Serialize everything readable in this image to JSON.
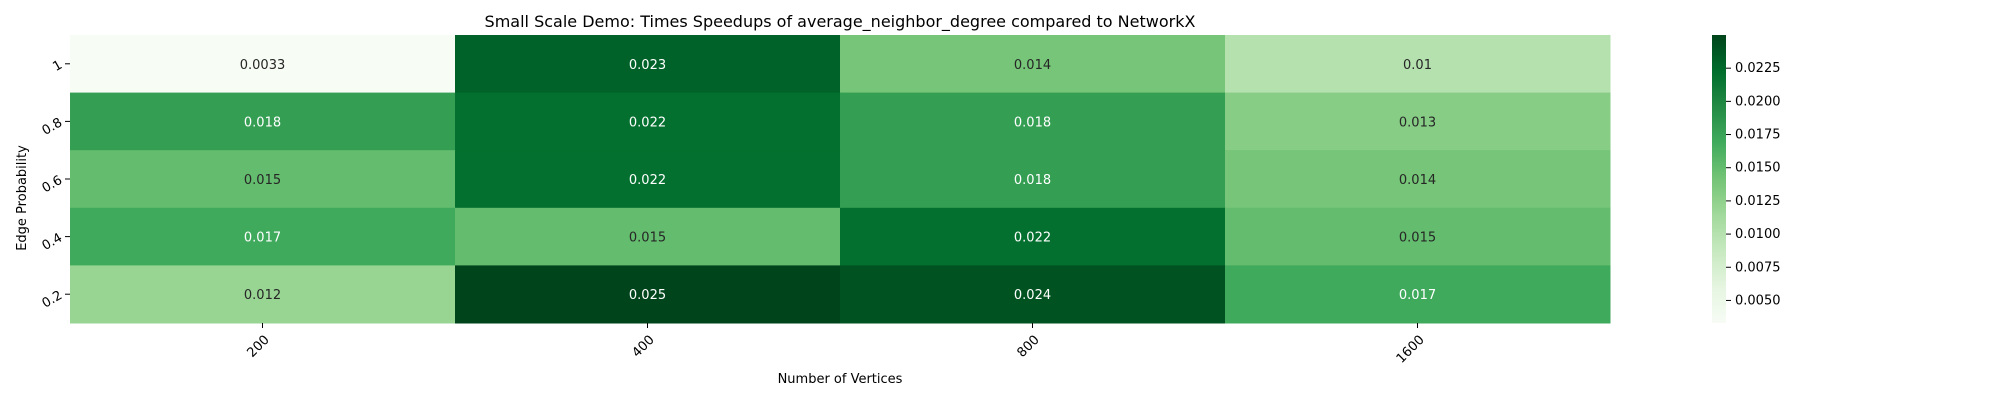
{
  "chart_data": {
    "type": "heatmap",
    "title": "Small Scale Demo: Times Speedups of average_neighbor_degree compared to NetworkX",
    "xlabel": "Number of Vertices",
    "ylabel": "Edge Probability",
    "x_categories": [
      "200",
      "400",
      "800",
      "1600"
    ],
    "y_categories": [
      "1",
      "0.8",
      "0.6",
      "0.4",
      "0.2"
    ],
    "values": [
      [
        0.0033,
        0.023,
        0.014,
        0.01
      ],
      [
        0.018,
        0.022,
        0.018,
        0.013
      ],
      [
        0.015,
        0.022,
        0.018,
        0.014
      ],
      [
        0.017,
        0.015,
        0.022,
        0.015
      ],
      [
        0.012,
        0.025,
        0.024,
        0.017
      ]
    ],
    "value_labels": [
      [
        "0.0033",
        "0.023",
        "0.014",
        "0.01"
      ],
      [
        "0.018",
        "0.022",
        "0.018",
        "0.013"
      ],
      [
        "0.015",
        "0.022",
        "0.018",
        "0.014"
      ],
      [
        "0.017",
        "0.015",
        "0.022",
        "0.015"
      ],
      [
        "0.012",
        "0.025",
        "0.024",
        "0.017"
      ]
    ],
    "colormap": "Greens",
    "colorbar": {
      "vmin": 0.0033,
      "vmax": 0.025,
      "ticks": [
        "0.0050",
        "0.0075",
        "0.0100",
        "0.0125",
        "0.0150",
        "0.0175",
        "0.0200",
        "0.0225"
      ]
    },
    "colormap_stops": [
      "#f7fcf5",
      "#e5f5e0",
      "#c7e9c0",
      "#a1d99b",
      "#74c476",
      "#41ab5d",
      "#238b45",
      "#006d2c",
      "#00441b"
    ]
  }
}
